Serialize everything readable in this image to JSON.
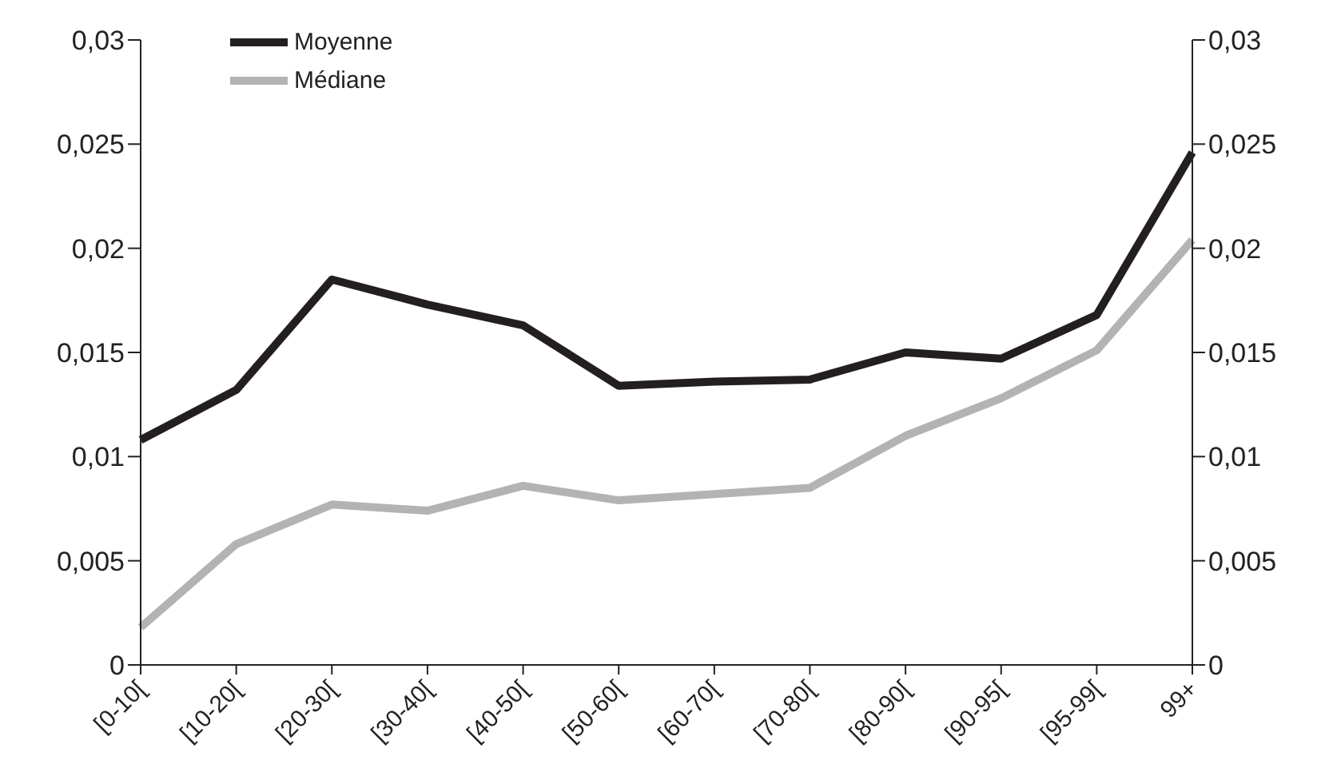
{
  "chart_data": {
    "type": "line",
    "categories": [
      "[0-10[",
      "[10-20[",
      "[20-30[",
      "[30-40[",
      "[40-50[",
      "[50-60[",
      "[60-70[",
      "[70-80[",
      "[80-90[",
      "[90-95[",
      "[95-99[",
      "99+"
    ],
    "series": [
      {
        "name": "Moyenne",
        "color": "#231f20",
        "values": [
          0.0108,
          0.0132,
          0.0185,
          0.0173,
          0.0163,
          0.0134,
          0.0136,
          0.0137,
          0.015,
          0.0147,
          0.0168,
          0.0246
        ]
      },
      {
        "name": "Médiane",
        "color": "#b3b3b3",
        "values": [
          0.0018,
          0.0058,
          0.0077,
          0.0074,
          0.0086,
          0.0079,
          0.0082,
          0.0085,
          0.011,
          0.0128,
          0.0151,
          0.0204
        ]
      }
    ],
    "ylim": [
      0,
      0.03
    ],
    "yticks": [
      {
        "value": 0,
        "label": "0"
      },
      {
        "value": 0.005,
        "label": "0,005"
      },
      {
        "value": 0.01,
        "label": "0,01"
      },
      {
        "value": 0.015,
        "label": "0,015"
      },
      {
        "value": 0.02,
        "label": "0,02"
      },
      {
        "value": 0.025,
        "label": "0,025"
      },
      {
        "value": 0.03,
        "label": "0,03"
      }
    ],
    "y2lim": [
      0,
      0.03
    ],
    "y2ticks": [
      {
        "value": 0,
        "label": "0"
      },
      {
        "value": 0.005,
        "label": "0,005"
      },
      {
        "value": 0.01,
        "label": "0,01"
      },
      {
        "value": 0.015,
        "label": "0,015"
      },
      {
        "value": 0.02,
        "label": "0,02"
      },
      {
        "value": 0.025,
        "label": "0,025"
      },
      {
        "value": 0.03,
        "label": "0,03"
      }
    ],
    "grid": false,
    "legend": "top left",
    "marker": "none",
    "line_style": "solid"
  }
}
